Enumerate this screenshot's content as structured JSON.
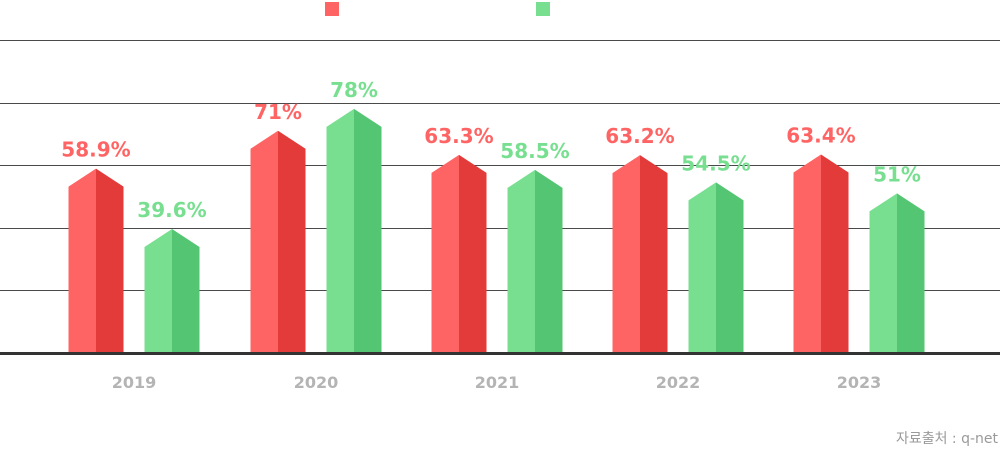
{
  "chart_data": {
    "type": "bar",
    "categories": [
      "2019",
      "2020",
      "2021",
      "2022",
      "2023"
    ],
    "series": [
      {
        "name": "",
        "values": [
          58.9,
          71,
          63.3,
          63.2,
          63.4
        ],
        "labels": [
          "58.9%",
          "71%",
          "63.3%",
          "63.2%",
          "63.4%"
        ],
        "color": "#ff6464",
        "shade": "#e33a3a"
      },
      {
        "name": "",
        "values": [
          39.6,
          78,
          58.5,
          54.5,
          51
        ],
        "labels": [
          "39.6%",
          "78%",
          "58.5%",
          "54.5%",
          "51%"
        ],
        "color": "#77df8f",
        "shade": "#54c572"
      }
    ],
    "ylim": [
      0,
      100
    ],
    "grid": true,
    "legend": "top"
  },
  "source": "자료출처 : q-net"
}
